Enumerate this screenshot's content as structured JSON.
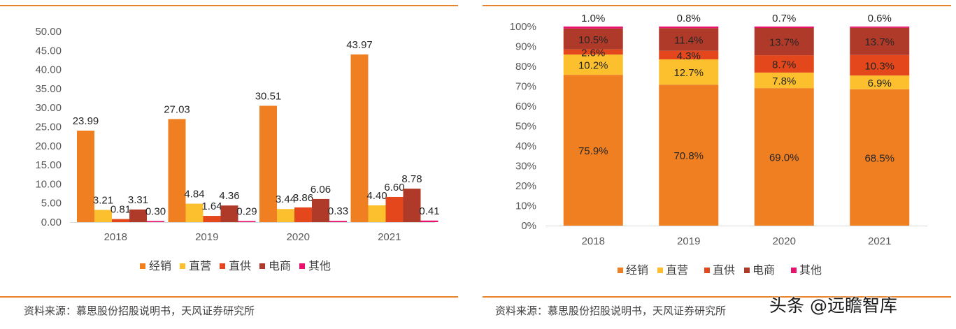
{
  "left_panel": {
    "source": "资料来源：慕思股份招股说明书，天风证券研究所"
  },
  "right_panel": {
    "source": "资料来源：慕思股份招股说明书，天风证券研究所"
  },
  "watermark": "头条 @远瞻智库",
  "colors": {
    "经销": "#f07f22",
    "直营": "#fcc02f",
    "直供": "#e4471b",
    "电商": "#b03a2a",
    "其他": "#e8126e",
    "rule": "#e8832a"
  },
  "chart_data": [
    {
      "type": "bar",
      "title": "",
      "xlabel": "",
      "ylabel": "",
      "categories": [
        "2018",
        "2019",
        "2020",
        "2021"
      ],
      "ylim": [
        0,
        50
      ],
      "yticks": [
        "0.00",
        "5.00",
        "10.00",
        "15.00",
        "20.00",
        "25.00",
        "30.00",
        "35.00",
        "40.00",
        "45.00",
        "50.00"
      ],
      "legend_position": "bottom",
      "series": [
        {
          "name": "经销",
          "values": [
            23.99,
            27.03,
            30.51,
            43.97
          ],
          "labels": [
            "23.99",
            "27.03",
            "30.51",
            "43.97"
          ]
        },
        {
          "name": "直营",
          "values": [
            3.21,
            4.84,
            3.44,
            4.4
          ],
          "labels": [
            "3.21",
            "4.84",
            "3.44",
            "4.40"
          ]
        },
        {
          "name": "直供",
          "values": [
            0.81,
            1.64,
            3.86,
            6.6
          ],
          "labels": [
            "0.81",
            "1.64",
            "3.86",
            "6.60"
          ]
        },
        {
          "name": "电商",
          "values": [
            3.31,
            4.36,
            6.06,
            8.78
          ],
          "labels": [
            "3.31",
            "4.36",
            "6.06",
            "8.78"
          ]
        },
        {
          "name": "其他",
          "values": [
            0.3,
            0.29,
            0.33,
            0.41
          ],
          "labels": [
            "0.30",
            "0.29",
            "0.33",
            "0.41"
          ]
        }
      ]
    },
    {
      "type": "bar",
      "stacked": true,
      "title": "",
      "xlabel": "",
      "ylabel": "",
      "categories": [
        "2018",
        "2019",
        "2020",
        "2021"
      ],
      "ylim": [
        0,
        100
      ],
      "yticks": [
        "0%",
        "10%",
        "20%",
        "30%",
        "40%",
        "50%",
        "60%",
        "70%",
        "80%",
        "90%",
        "100%"
      ],
      "legend_position": "bottom",
      "series": [
        {
          "name": "经销",
          "values": [
            75.9,
            70.8,
            69.0,
            68.5
          ],
          "labels": [
            "75.9%",
            "70.8%",
            "69.0%",
            "68.5%"
          ]
        },
        {
          "name": "直营",
          "values": [
            10.2,
            12.7,
            7.8,
            6.9
          ],
          "labels": [
            "10.2%",
            "12.7%",
            "7.8%",
            "6.9%"
          ]
        },
        {
          "name": "直供",
          "values": [
            2.6,
            4.3,
            8.7,
            10.3
          ],
          "labels": [
            "2.6%",
            "4.3%",
            "8.7%",
            "10.3%"
          ]
        },
        {
          "name": "电商",
          "values": [
            10.5,
            11.4,
            13.7,
            13.7
          ],
          "labels": [
            "10.5%",
            "11.4%",
            "13.7%",
            "13.7%"
          ]
        },
        {
          "name": "其他",
          "values": [
            1.0,
            0.8,
            0.7,
            0.6
          ],
          "labels": [
            "1.0%",
            "0.8%",
            "0.7%",
            "0.6%"
          ]
        }
      ]
    }
  ]
}
